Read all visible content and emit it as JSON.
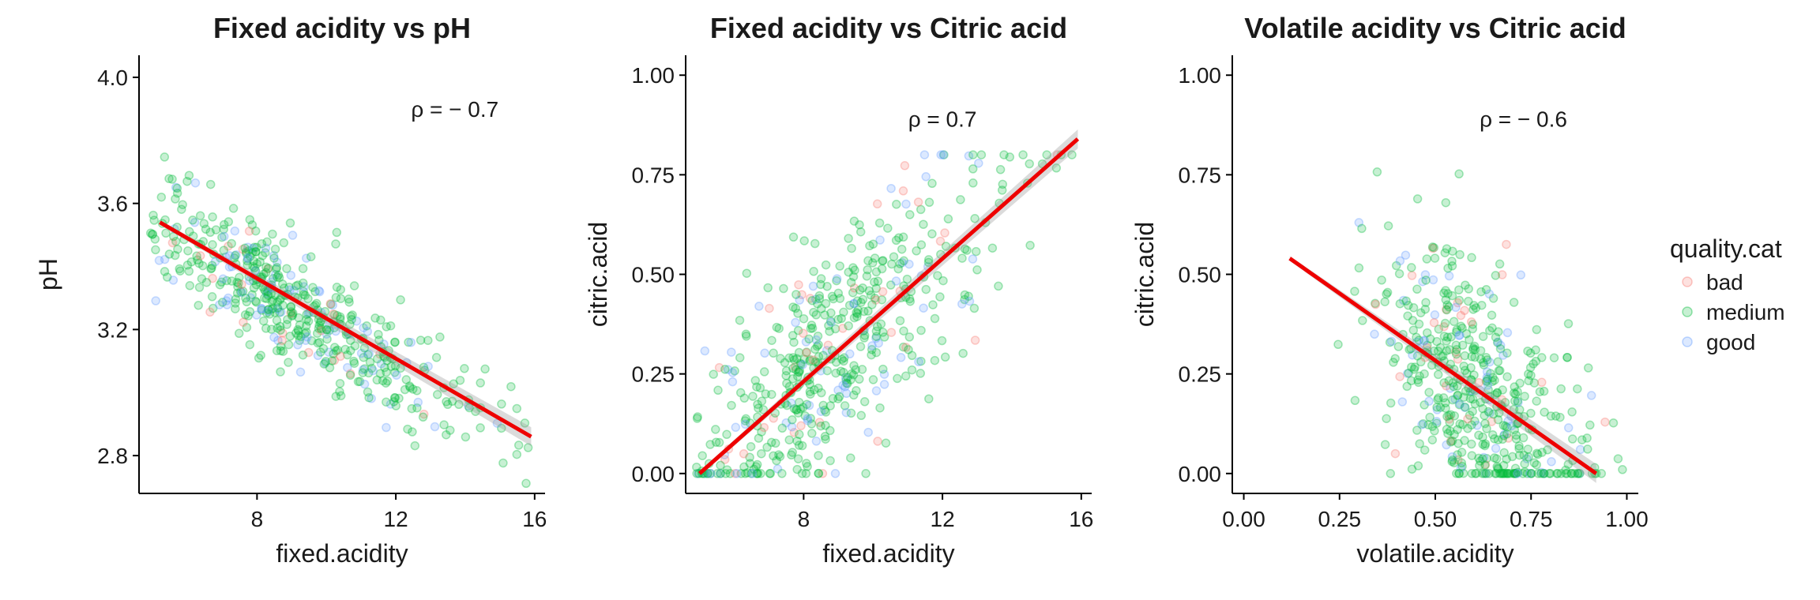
{
  "legend": {
    "title": "quality.cat",
    "items": [
      {
        "label": "bad",
        "color": "#F8766D"
      },
      {
        "label": "medium",
        "color": "#00BA38"
      },
      {
        "label": "good",
        "color": "#619CFF"
      }
    ]
  },
  "fit_line_color": "#EE0000",
  "chart_data": [
    {
      "type": "scatter",
      "title": "Fixed acidity vs pH",
      "xlabel": "fixed.acidity",
      "ylabel": "pH",
      "xlim": [
        4.6,
        16.3
      ],
      "ylim": [
        2.68,
        4.07
      ],
      "xticks": [
        8,
        12,
        16
      ],
      "yticks": [
        2.8,
        3.2,
        3.6,
        4.0
      ],
      "ytick_labels": [
        "2.8",
        "3.2",
        "3.6",
        "4.0"
      ],
      "xtick_labels": [
        "8",
        "12",
        "16"
      ],
      "annotation": "ρ = − 0.7",
      "annotation_pos": [
        13.7,
        3.9
      ],
      "fit": {
        "x": [
          5.2,
          15.9
        ],
        "y": [
          3.54,
          2.86
        ]
      },
      "point_model": {
        "x_range": [
          4.9,
          15.9
        ],
        "x_mode": 7.6,
        "slope": -0.062,
        "intercept": 3.84,
        "spread": 0.09
      }
    },
    {
      "type": "scatter",
      "title": "Fixed acidity vs Citric acid",
      "xlabel": "fixed.acidity",
      "ylabel": "citric.acid",
      "xlim": [
        4.6,
        16.3
      ],
      "ylim": [
        -0.05,
        1.05
      ],
      "xticks": [
        8,
        12,
        16
      ],
      "yticks": [
        0.0,
        0.25,
        0.5,
        0.75,
        1.0
      ],
      "ytick_labels": [
        "0.00",
        "0.25",
        "0.50",
        "0.75",
        "1.00"
      ],
      "xtick_labels": [
        "8",
        "12",
        "16"
      ],
      "annotation": "ρ = 0.7",
      "annotation_pos": [
        12.0,
        0.89
      ],
      "fit": {
        "x": [
          5.0,
          15.9
        ],
        "y": [
          0.0,
          0.84
        ]
      },
      "point_model": {
        "x_range": [
          4.9,
          15.9
        ],
        "x_mode": 7.6,
        "slope": 0.077,
        "intercept": -0.385,
        "spread": 0.14
      }
    },
    {
      "type": "scatter",
      "title": "Volatile acidity vs Citric acid",
      "xlabel": "volatile.acidity",
      "ylabel": "citric.acid",
      "xlim": [
        -0.03,
        1.03
      ],
      "ylim": [
        -0.05,
        1.05
      ],
      "xticks": [
        0.0,
        0.25,
        0.5,
        0.75,
        1.0
      ],
      "yticks": [
        0.0,
        0.25,
        0.5,
        0.75,
        1.0
      ],
      "ytick_labels": [
        "0.00",
        "0.25",
        "0.50",
        "0.75",
        "1.00"
      ],
      "xtick_labels": [
        "0.00",
        "0.25",
        "0.50",
        "0.75",
        "1.00"
      ],
      "annotation": "ρ = − 0.6",
      "annotation_pos": [
        0.73,
        0.89
      ],
      "fit": {
        "x": [
          0.12,
          0.92
        ],
        "y": [
          0.54,
          0.0
        ]
      },
      "point_model": {
        "x_range": [
          0.12,
          1.0
        ],
        "x_mode": 0.52,
        "slope": -0.67,
        "intercept": 0.62,
        "spread": 0.16
      }
    }
  ]
}
